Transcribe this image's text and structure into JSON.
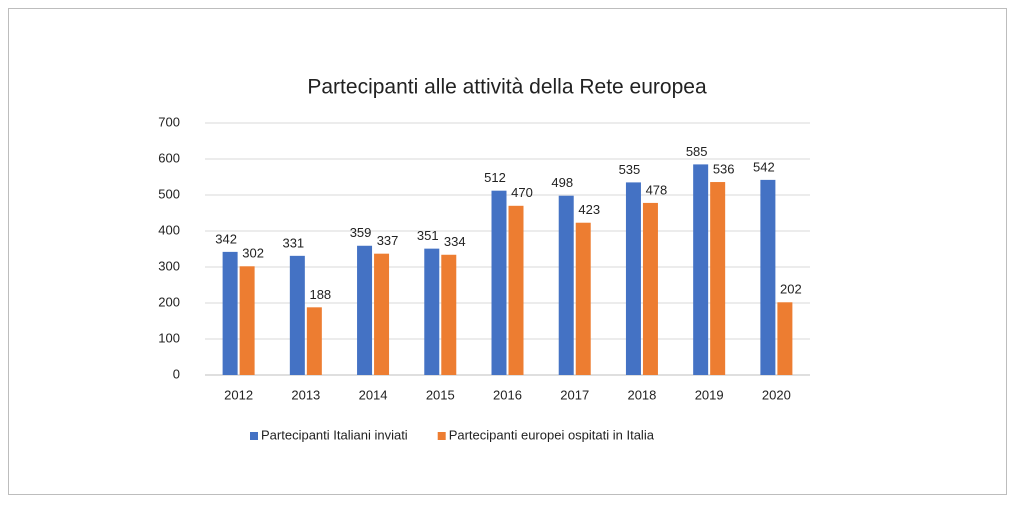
{
  "chart_data": {
    "type": "bar",
    "title": "Partecipanti alle attività della Rete europea",
    "categories": [
      "2012",
      "2013",
      "2014",
      "2015",
      "2016",
      "2017",
      "2018",
      "2019",
      "2020"
    ],
    "series": [
      {
        "name": "Partecipanti Italiani inviati",
        "color": "#4472c4",
        "values": [
          342,
          331,
          359,
          351,
          512,
          498,
          535,
          585,
          542
        ]
      },
      {
        "name": "Partecipanti europei ospitati in Italia",
        "color": "#ed7d31",
        "values": [
          302,
          188,
          337,
          334,
          470,
          423,
          478,
          536,
          202
        ]
      }
    ],
    "ylim": [
      0,
      700
    ],
    "yticks": [
      0,
      100,
      200,
      300,
      400,
      500,
      600,
      700
    ],
    "grid": true,
    "legend": "bottom"
  }
}
